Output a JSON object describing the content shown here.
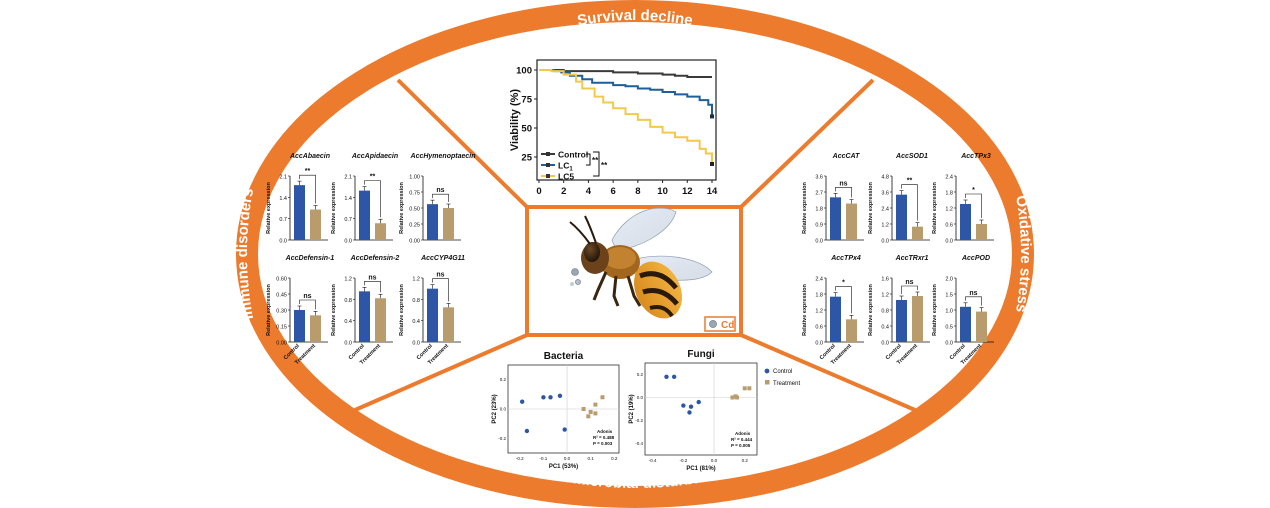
{
  "sections": {
    "top": "Survival decline",
    "bottom": "Gut microbial disturbance",
    "left": "Immune disorders",
    "right": "Oxidative stress"
  },
  "center": {
    "cd_label": "Cd"
  },
  "survival": {
    "ylabel": "Viability (%)",
    "yticks": [
      "100",
      "75",
      "50",
      "25"
    ],
    "xticks": [
      "0",
      "2",
      "4",
      "6",
      "8",
      "10",
      "12",
      "14"
    ],
    "legend": [
      "Control",
      "LC",
      "LC5"
    ],
    "sig1": "**",
    "sig2": "**",
    "colors": {
      "control": "#3a3a3a",
      "lc1": "#1f5e96",
      "lc5": "#f2c94c"
    }
  },
  "common": {
    "ylabel": "Relative expression",
    "xlabels": [
      "Control",
      "Treatment"
    ],
    "color_control": "#2e56a6",
    "color_treatment": "#b89c6e"
  },
  "immune_charts": [
    {
      "title": "AccAbaecin",
      "sig": "**",
      "yticks": [
        "2.1",
        "1.4",
        "0.7",
        "0.0"
      ],
      "max": 2.1,
      "values": [
        1.8,
        1.0
      ]
    },
    {
      "title": "AccApidaecin",
      "sig": "**",
      "yticks": [
        "2.1",
        "1.4",
        "0.7",
        "0.0"
      ],
      "max": 2.1,
      "values": [
        1.62,
        0.55
      ]
    },
    {
      "title": "AccHymenoptaecin",
      "sig": "ns",
      "yticks": [
        "1.00",
        "0.75",
        "0.50",
        "0.25",
        "0.00"
      ],
      "max": 1.0,
      "values": [
        0.56,
        0.5
      ]
    },
    {
      "title": "AccDefensin-1",
      "sig": "ns",
      "yticks": [
        "0.60",
        "0.45",
        "0.30",
        "0.15",
        "0.00"
      ],
      "max": 0.6,
      "values": [
        0.3,
        0.25
      ]
    },
    {
      "title": "AccDefensin-2",
      "sig": "ns",
      "yticks": [
        "1.2",
        "0.8",
        "0.4",
        "0.0"
      ],
      "max": 1.6,
      "values": [
        0.95,
        0.82
      ]
    },
    {
      "title": "AccCYP4G11",
      "sig": "ns",
      "yticks": [
        "1.2",
        "0.8",
        "0.4",
        "0.0"
      ],
      "max": 1.6,
      "values": [
        1.0,
        0.65
      ]
    }
  ],
  "oxidative_charts": [
    {
      "title": "AccCAT",
      "sig": "ns",
      "yticks": [
        "3.6",
        "2.7",
        "1.8",
        "0.9",
        "0.0"
      ],
      "max": 3.6,
      "values": [
        2.4,
        2.05
      ]
    },
    {
      "title": "AccSOD1",
      "sig": "**",
      "yticks": [
        "4.8",
        "3.6",
        "2.4",
        "1.2",
        "0.0"
      ],
      "max": 4.8,
      "values": [
        3.4,
        1.0
      ]
    },
    {
      "title": "AccTPx3",
      "sig": "*",
      "yticks": [
        "2.4",
        "1.8",
        "1.2",
        "0.6",
        "0.0"
      ],
      "max": 2.4,
      "values": [
        1.35,
        0.6
      ]
    },
    {
      "title": "AccTPx4",
      "sig": "*",
      "yticks": [
        "2.4",
        "1.8",
        "1.2",
        "0.6",
        "0.0"
      ],
      "max": 2.4,
      "values": [
        1.7,
        0.85
      ]
    },
    {
      "title": "AccTRxr1",
      "sig": "ns",
      "yticks": [
        "1.6",
        "1.2",
        "0.8",
        "0.4",
        "0.0"
      ],
      "max": 1.6,
      "values": [
        1.05,
        1.15
      ]
    },
    {
      "title": "AccPOD",
      "sig": "ns",
      "yticks": [
        "2.0",
        "1.5",
        "1.0",
        "0.5",
        "0.0"
      ],
      "max": 2.0,
      "values": [
        1.1,
        0.95
      ]
    }
  ],
  "pca": [
    {
      "title": "Bacteria",
      "xlabel": "PC1 (53%)",
      "ylabel": "PC2 (23%)",
      "xticks": [
        "-0.2",
        "-0.1",
        "0.0",
        "0.1",
        "0.2"
      ],
      "yticks": [
        "0.2",
        "0.0",
        "-0.2"
      ],
      "xlim": [
        -0.25,
        0.22
      ],
      "ylim": [
        -0.3,
        0.3
      ],
      "control": [
        [
          -0.19,
          0.05
        ],
        [
          -0.17,
          -0.15
        ],
        [
          -0.1,
          0.08
        ],
        [
          -0.07,
          0.08
        ],
        [
          -0.03,
          0.09
        ],
        [
          -0.01,
          -0.14
        ]
      ],
      "treatment": [
        [
          0.07,
          0.0
        ],
        [
          0.1,
          -0.02
        ],
        [
          0.09,
          -0.05
        ],
        [
          0.12,
          0.03
        ],
        [
          0.12,
          -0.03
        ],
        [
          0.15,
          0.08
        ]
      ],
      "adonis": {
        "title": "Adonis",
        "r2": "R² = 0.488",
        "p": "P = 0.003"
      }
    },
    {
      "title": "Fungi",
      "xlabel": "PC1 (81%)",
      "ylabel": "PC2 (19%)",
      "xticks": [
        "-0.4",
        "-0.2",
        "0.0",
        "0.2"
      ],
      "yticks": [
        "0.2",
        "0.0",
        "-0.2",
        "-0.4"
      ],
      "xlim": [
        -0.45,
        0.28
      ],
      "ylim": [
        -0.5,
        0.3
      ],
      "control": [
        [
          -0.31,
          0.18
        ],
        [
          -0.26,
          0.18
        ],
        [
          -0.2,
          -0.07
        ],
        [
          -0.16,
          -0.13
        ],
        [
          -0.15,
          -0.08
        ],
        [
          -0.1,
          -0.04
        ]
      ],
      "treatment": [
        [
          0.12,
          0.0
        ],
        [
          0.14,
          0.01
        ],
        [
          0.15,
          0.0
        ],
        [
          0.2,
          0.08
        ],
        [
          0.23,
          0.08
        ]
      ],
      "adonis": {
        "title": "Adonis",
        "r2": "R² = 0.444",
        "p": "P = 0.005"
      }
    }
  ],
  "pca_legend": [
    "Control",
    "Treatment"
  ]
}
